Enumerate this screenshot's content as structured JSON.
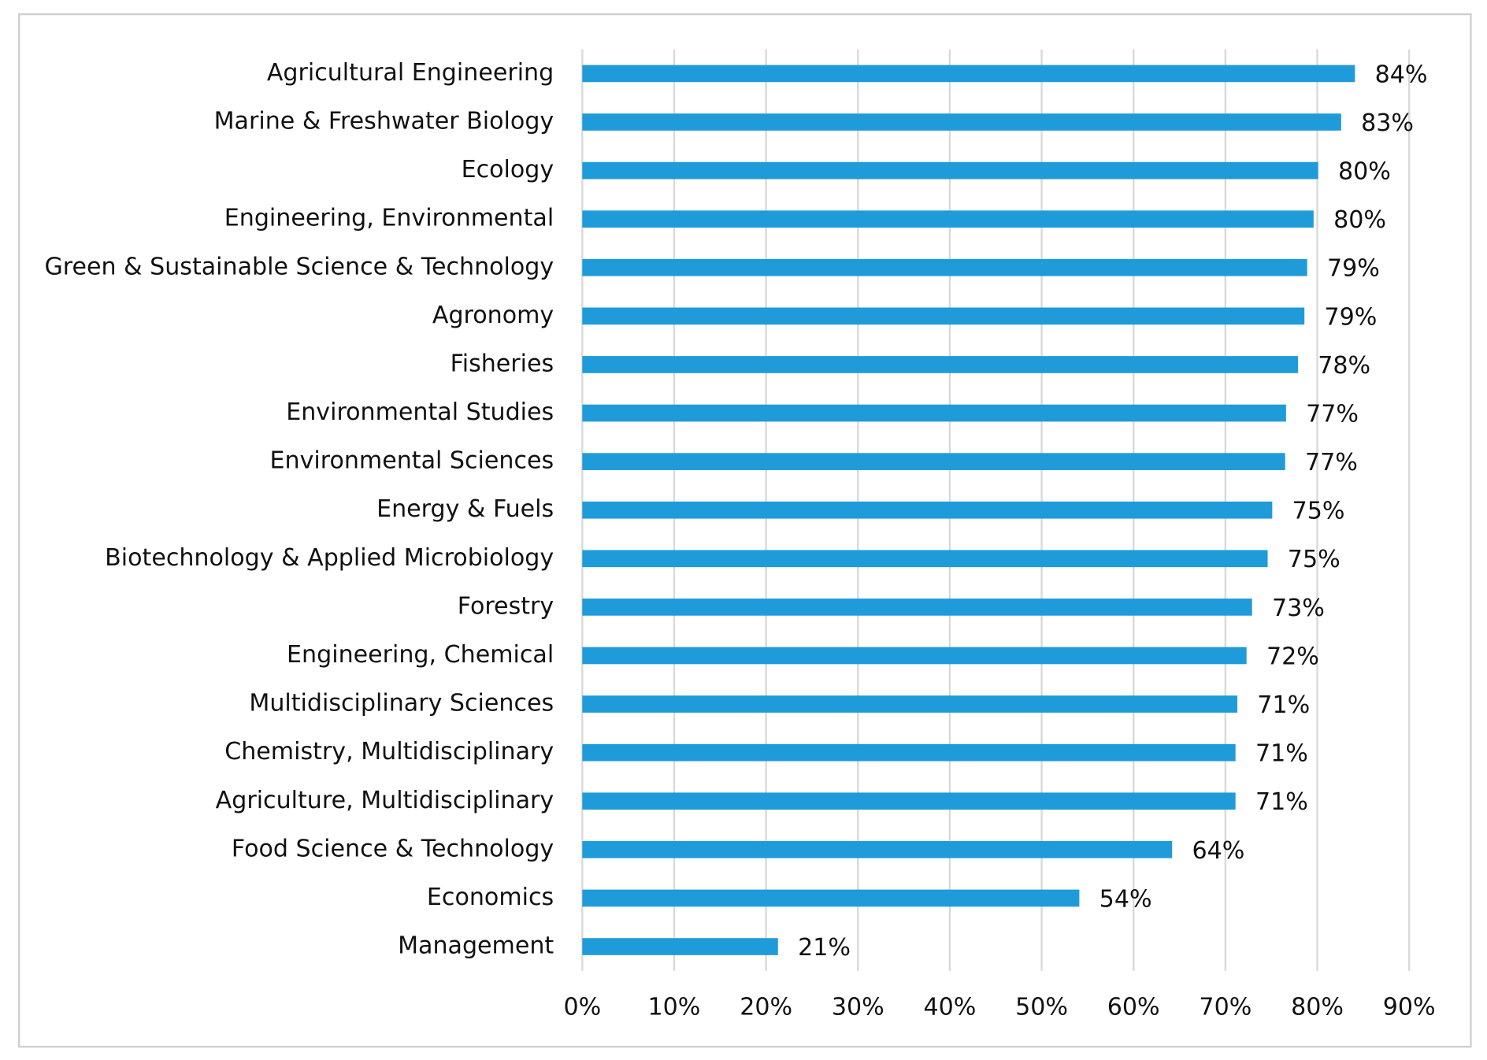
{
  "chart_data": {
    "type": "bar",
    "orientation": "horizontal",
    "color": "#1f9bd9",
    "grid": true,
    "categories": [
      "Agricultural Engineering",
      "Marine & Freshwater Biology",
      "Ecology",
      "Engineering, Environmental",
      "Green & Sustainable Science & Technology",
      "Agronomy",
      "Fisheries",
      "Environmental Studies",
      "Environmental Sciences",
      "Energy & Fuels",
      "Biotechnology & Applied Microbiology",
      "Forestry",
      "Engineering, Chemical",
      "Multidisciplinary Sciences",
      "Chemistry, Multidisciplinary",
      "Agriculture, Multidisciplinary",
      "Food Science & Technology",
      "Economics",
      "Management"
    ],
    "values": [
      84.1,
      82.6,
      80.1,
      79.6,
      78.9,
      78.6,
      77.9,
      76.6,
      76.5,
      75.1,
      74.6,
      72.9,
      72.3,
      71.3,
      71.1,
      71.1,
      64.2,
      54.1,
      21.3
    ],
    "value_labels": [
      "84%",
      "83%",
      "80%",
      "80%",
      "79%",
      "79%",
      "78%",
      "77%",
      "77%",
      "75%",
      "75%",
      "73%",
      "72%",
      "71%",
      "71%",
      "71%",
      "64%",
      "54%",
      "21%"
    ],
    "xlim": [
      0,
      90
    ],
    "xticks": [
      {
        "value": 0,
        "label": "0%"
      },
      {
        "value": 10,
        "label": "10%"
      },
      {
        "value": 20,
        "label": "20%"
      },
      {
        "value": 30,
        "label": "30%"
      },
      {
        "value": 40,
        "label": "40%"
      },
      {
        "value": 50,
        "label": "50%"
      },
      {
        "value": 60,
        "label": "60%"
      },
      {
        "value": 70,
        "label": "70%"
      },
      {
        "value": 80,
        "label": "80%"
      },
      {
        "value": 90,
        "label": "90%"
      }
    ]
  }
}
